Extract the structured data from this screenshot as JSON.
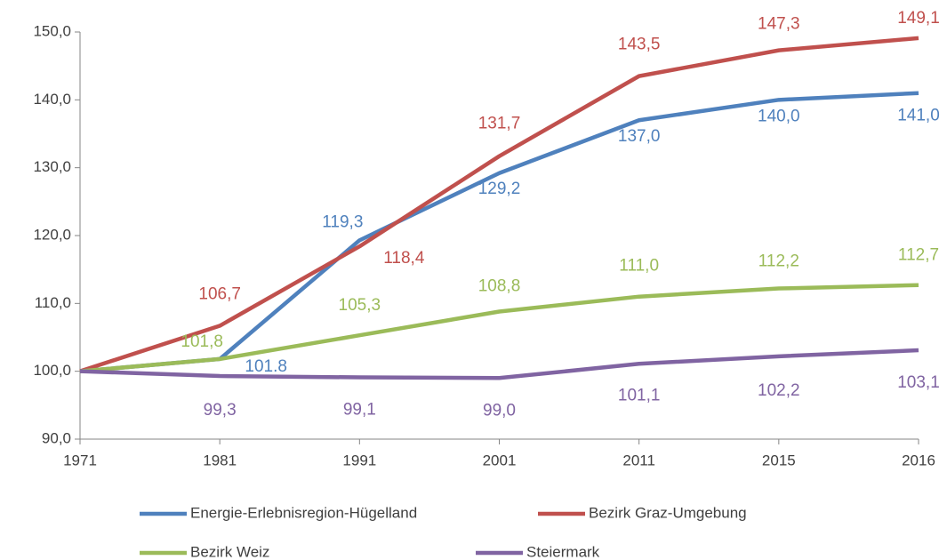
{
  "chart_data": {
    "type": "line",
    "categories": [
      "1971",
      "1981",
      "1991",
      "2001",
      "2011",
      "2015",
      "2016"
    ],
    "ylim": [
      90,
      150
    ],
    "yticks": [
      {
        "value": 90,
        "label": "90,0"
      },
      {
        "value": 100,
        "label": "100,0"
      },
      {
        "value": 110,
        "label": "110,0"
      },
      {
        "value": 120,
        "label": "120,0"
      },
      {
        "value": 130,
        "label": "130,0"
      },
      {
        "value": 140,
        "label": "140,0"
      },
      {
        "value": 150,
        "label": "150,0"
      }
    ],
    "grid": false,
    "legend": "bottom",
    "series": [
      {
        "name": "Energie-Erlebnisregion-Hügelland",
        "color": "#4f81bd",
        "values": [
          100,
          101.8,
          119.3,
          129.2,
          137.0,
          140.0,
          141.0
        ],
        "value_labels": [
          null,
          "101.8",
          "119,3",
          "129,2",
          "137,0",
          "140,0",
          "141,0"
        ]
      },
      {
        "name": "Bezirk Graz-Umgebung",
        "color": "#c0504d",
        "values": [
          100,
          106.7,
          118.4,
          131.7,
          143.5,
          147.3,
          149.1
        ],
        "value_labels": [
          null,
          "106,7",
          "118,4",
          "131,7",
          "143,5",
          "147,3",
          "149,1"
        ]
      },
      {
        "name": "Bezirk Weiz",
        "color": "#9bbb59",
        "values": [
          100,
          101.8,
          105.3,
          108.8,
          111.0,
          112.2,
          112.7
        ],
        "value_labels": [
          null,
          "101,8",
          "105,3",
          "108,8",
          "111,0",
          "112,2",
          "112,7"
        ]
      },
      {
        "name": "Steiermark",
        "color": "#8064a2",
        "values": [
          100,
          99.3,
          99.1,
          99.0,
          101.1,
          102.2,
          103.1
        ],
        "value_labels": [
          null,
          "99,3",
          "99,1",
          "99,0",
          "101,1",
          "102,2",
          "103,1"
        ]
      }
    ]
  }
}
